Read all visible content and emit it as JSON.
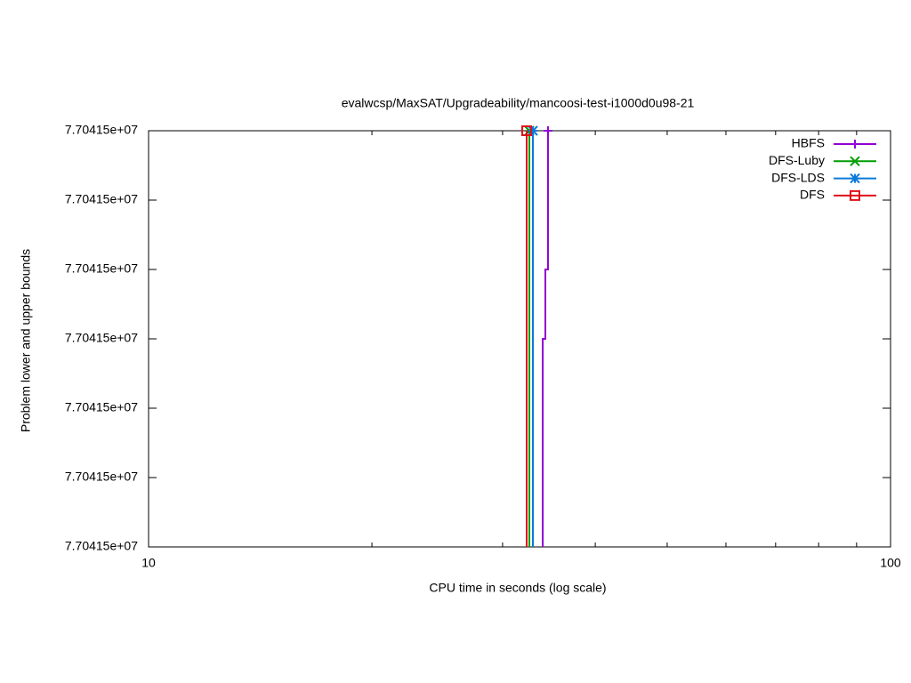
{
  "chart_data": {
    "type": "line",
    "title": "evalwcsp/MaxSAT/Upgradeability/mancoosi-test-i1000d0u98-21",
    "xlabel": "CPU time in seconds (log scale)",
    "ylabel": "Problem lower and upper bounds",
    "xlog": true,
    "xlim": [
      10,
      100
    ],
    "xticks": [
      10,
      100
    ],
    "xminorticks": [
      20,
      30,
      40,
      50,
      60,
      70,
      80,
      90
    ],
    "ylim": [
      77041470,
      77041500
    ],
    "yticks": [
      {
        "value": 77041470,
        "label": "7.70415e+07"
      },
      {
        "value": 77041475,
        "label": "7.70415e+07"
      },
      {
        "value": 77041480,
        "label": "7.70415e+07"
      },
      {
        "value": 77041485,
        "label": "7.70415e+07"
      },
      {
        "value": 77041490,
        "label": "7.70415e+07"
      },
      {
        "value": 77041495,
        "label": "7.70415e+07"
      },
      {
        "value": 77041500,
        "label": "7.70415e+07"
      }
    ],
    "legend": "top-right",
    "series": [
      {
        "name": "HBFS",
        "color": "#9400d3",
        "marker": "plus",
        "x": [
          33.98,
          33.98,
          34.26,
          34.26,
          34.54,
          34.54
        ],
        "values": [
          77041470,
          77041485,
          77041485,
          77041490,
          77041490,
          77041500
        ]
      },
      {
        "name": "DFS-Luby",
        "color": "#009e00",
        "marker": "cross",
        "x": [
          32.6,
          32.6
        ],
        "values": [
          77041470,
          77041500
        ]
      },
      {
        "name": "DFS-LDS",
        "color": "#0a7ad9",
        "marker": "star",
        "x": [
          32.96,
          32.96
        ],
        "values": [
          77041470,
          77041500
        ]
      },
      {
        "name": "DFS",
        "color": "#e0101a",
        "marker": "square",
        "x": [
          32.33,
          32.33
        ],
        "values": [
          77041470,
          77041500
        ]
      }
    ]
  }
}
